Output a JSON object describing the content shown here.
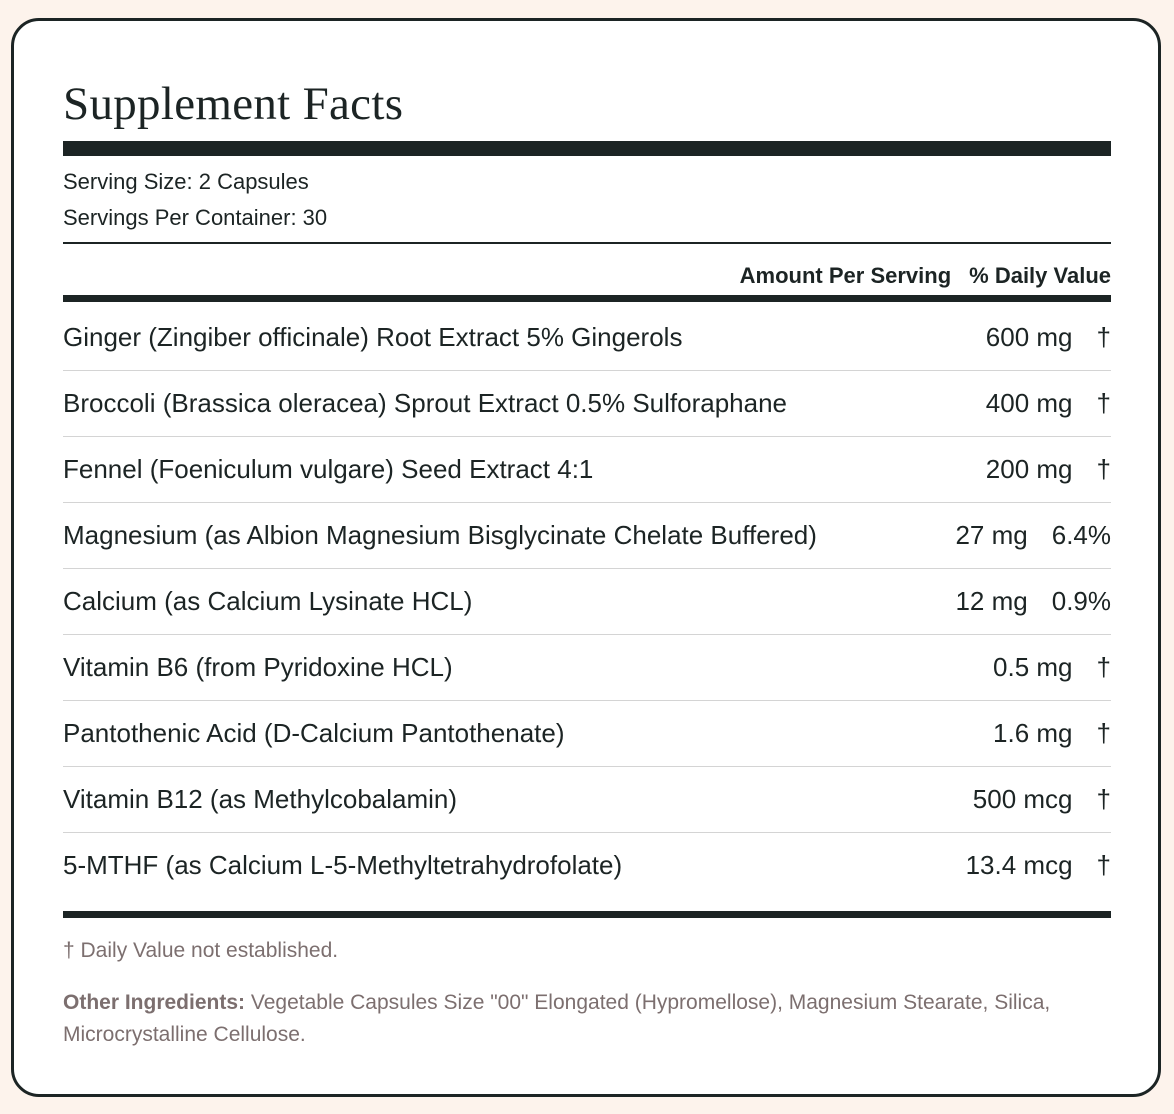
{
  "title": "Supplement Facts",
  "serving": {
    "size": "Serving Size: 2 Capsules",
    "per_container": "Servings Per Container: 30"
  },
  "header": {
    "amount": "Amount Per Serving",
    "daily_value": "% Daily Value"
  },
  "rows": [
    {
      "name": "Ginger (Zingiber officinale) Root Extract 5% Gingerols",
      "amount": "600 mg",
      "daily_value": "†"
    },
    {
      "name": "Broccoli (Brassica oleracea) Sprout Extract 0.5% Sulforaphane",
      "amount": "400 mg",
      "daily_value": "†"
    },
    {
      "name": "Fennel (Foeniculum vulgare) Seed Extract 4:1",
      "amount": "200 mg",
      "daily_value": "†"
    },
    {
      "name": "Magnesium (as Albion Magnesium Bisglycinate Chelate Buffered)",
      "amount": "27 mg",
      "daily_value": "6.4%"
    },
    {
      "name": "Calcium (as Calcium Lysinate HCL)",
      "amount": "12 mg",
      "daily_value": "0.9%"
    },
    {
      "name": "Vitamin B6 (from Pyridoxine HCL)",
      "amount": "0.5 mg",
      "daily_value": "†"
    },
    {
      "name": "Pantothenic Acid (D-Calcium Pantothenate)",
      "amount": "1.6 mg",
      "daily_value": "†"
    },
    {
      "name": "Vitamin B12 (as Methylcobalamin)",
      "amount": "500 mcg",
      "daily_value": "†"
    },
    {
      "name": "5-MTHF (as Calcium L-5-Methyltetrahydrofolate)",
      "amount": "13.4 mcg",
      "daily_value": "†"
    }
  ],
  "footnote": "† Daily Value not established.",
  "other_ingredients": {
    "label": "Other Ingredients:",
    "text": "Vegetable Capsules Size \"00\" Elongated (Hypromellose), Magnesium Stearate, Silica, Microcrystalline Cellulose."
  }
}
